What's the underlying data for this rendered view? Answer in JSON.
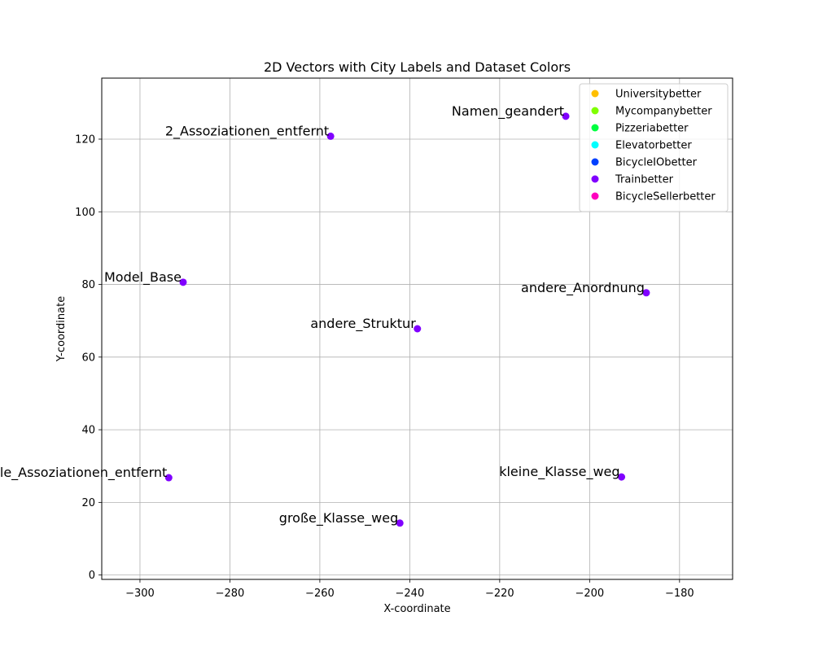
{
  "chart_data": {
    "type": "scatter",
    "title": "2D Vectors with City Labels and Dataset Colors",
    "xlabel": "X-coordinate",
    "ylabel": "Y-coordinate",
    "xlim": [
      -308.5,
      -168.2
    ],
    "ylim": [
      -1.2,
      136.8
    ],
    "xticks": [
      -300,
      -280,
      -260,
      -240,
      -220,
      -200,
      -180
    ],
    "yticks": [
      0,
      20,
      40,
      60,
      80,
      100,
      120
    ],
    "grid": true,
    "legend_position": "top-right",
    "legend": [
      {
        "name": "Universitybetter",
        "color": "#ffbf00"
      },
      {
        "name": "Mycompanybetter",
        "color": "#80ff00"
      },
      {
        "name": "Pizzeriabetter",
        "color": "#00ff40"
      },
      {
        "name": "Elevatorbetter",
        "color": "#00ffff"
      },
      {
        "name": "BicycleIObetter",
        "color": "#0040ff"
      },
      {
        "name": "Trainbetter",
        "color": "#8000ff"
      },
      {
        "name": "BicycleSellerbetter",
        "color": "#ff00bf"
      }
    ],
    "series": [
      {
        "name": "Trainbetter",
        "color": "#8000ff",
        "points": [
          {
            "x": -205.3,
            "y": 126.3,
            "label": "Namen_geandert"
          },
          {
            "x": -257.6,
            "y": 120.8,
            "label": "2_Assoziationen_entfernt"
          },
          {
            "x": -290.4,
            "y": 80.6,
            "label": "Model_Base"
          },
          {
            "x": -187.4,
            "y": 77.7,
            "label": "andere_Anordnung"
          },
          {
            "x": -238.3,
            "y": 67.8,
            "label": "andere_Struktur"
          },
          {
            "x": -293.6,
            "y": 26.8,
            "label": "alle_Assoziationen_entfernt"
          },
          {
            "x": -192.9,
            "y": 27.0,
            "label": "kleine_Klasse_weg"
          },
          {
            "x": -242.2,
            "y": 14.3,
            "label": "große_Klasse_weg"
          }
        ]
      }
    ]
  }
}
